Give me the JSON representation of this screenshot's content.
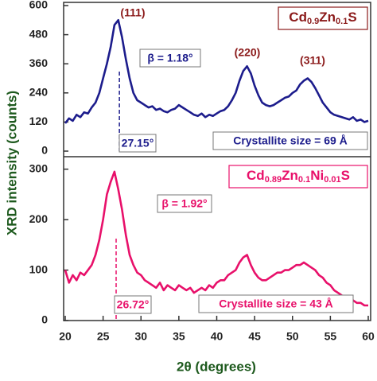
{
  "chart_data": [
    {
      "type": "line",
      "ylabel": "XRD intensity (counts)",
      "formula": [
        "Cd",
        "0.9",
        "Zn",
        "0.1",
        "S"
      ],
      "peak_labels": [
        "(111)",
        "(220)",
        "(311)"
      ],
      "beta_label": "β = 1.18°",
      "marker": {
        "value": 27.15,
        "label": "27.15°"
      },
      "size_label": "Crystallite size = 69 Å",
      "xlim": [
        20,
        60
      ],
      "ylim": [
        0,
        600
      ],
      "yticks": [
        0,
        120,
        240,
        360,
        480,
        600
      ],
      "series": [
        {
          "color": "#1c1c8c",
          "x": [
            20,
            20.5,
            21,
            21.5,
            22,
            22.5,
            23,
            23.5,
            24,
            24.5,
            25,
            25.5,
            26,
            26.5,
            27,
            27.5,
            28,
            28.5,
            29,
            29.5,
            30,
            30.5,
            31,
            31.5,
            32,
            32.5,
            33,
            33.5,
            34,
            34.5,
            35,
            35.5,
            36,
            36.5,
            37,
            37.5,
            38,
            38.5,
            39,
            39.5,
            40,
            40.5,
            41,
            41.5,
            42,
            42.5,
            43,
            43.5,
            44,
            44.5,
            45,
            45.5,
            46,
            46.5,
            47,
            47.5,
            48,
            48.5,
            49,
            49.5,
            50,
            50.5,
            51,
            51.5,
            52,
            52.5,
            53,
            53.5,
            54,
            54.5,
            55,
            55.5,
            56,
            56.5,
            57,
            57.5,
            58,
            58.5,
            59,
            59.5,
            60
          ],
          "values": [
            115,
            135,
            125,
            150,
            140,
            160,
            155,
            180,
            200,
            240,
            300,
            360,
            430,
            520,
            540,
            470,
            380,
            300,
            240,
            210,
            200,
            190,
            180,
            185,
            170,
            175,
            165,
            160,
            170,
            175,
            190,
            180,
            170,
            160,
            150,
            145,
            155,
            140,
            150,
            145,
            155,
            165,
            170,
            185,
            210,
            240,
            290,
            330,
            350,
            320,
            270,
            230,
            200,
            190,
            185,
            190,
            200,
            210,
            220,
            225,
            240,
            250,
            275,
            290,
            300,
            285,
            260,
            230,
            200,
            180,
            160,
            150,
            145,
            140,
            135,
            130,
            140,
            125,
            130,
            120,
            125
          ]
        }
      ]
    },
    {
      "type": "line",
      "xlabel": "2θ (degrees)",
      "formula": [
        "Cd",
        "0.89",
        "Zn",
        "0.1",
        "Ni",
        "0.01",
        "S"
      ],
      "beta_label": "β = 1.92°",
      "marker": {
        "value": 26.72,
        "label": "26.72°"
      },
      "size_label": "Crystallite size = 43 Å",
      "xlim": [
        20,
        60
      ],
      "xticks": [
        20,
        25,
        30,
        35,
        40,
        45,
        50,
        55,
        60
      ],
      "ylim": [
        0,
        320
      ],
      "yticks": [
        0,
        100,
        200,
        300
      ],
      "series": [
        {
          "color": "#e8106a",
          "x": [
            20,
            20.5,
            21,
            21.5,
            22,
            22.5,
            23,
            23.5,
            24,
            24.5,
            25,
            25.5,
            26,
            26.5,
            27,
            27.5,
            28,
            28.5,
            29,
            29.5,
            30,
            30.5,
            31,
            31.5,
            32,
            32.5,
            33,
            33.5,
            34,
            34.5,
            35,
            35.5,
            36,
            36.5,
            37,
            37.5,
            38,
            38.5,
            39,
            39.5,
            40,
            40.5,
            41,
            41.5,
            42,
            42.5,
            43,
            43.5,
            44,
            44.5,
            45,
            45.5,
            46,
            46.5,
            47,
            47.5,
            48,
            48.5,
            49,
            49.5,
            50,
            50.5,
            51,
            51.5,
            52,
            52.5,
            53,
            53.5,
            54,
            54.5,
            55,
            55.5,
            56,
            56.5,
            57,
            57.5,
            58,
            58.5,
            59,
            59.5,
            60
          ],
          "values": [
            100,
            75,
            90,
            80,
            95,
            90,
            100,
            110,
            130,
            160,
            200,
            250,
            275,
            295,
            260,
            220,
            170,
            130,
            110,
            95,
            90,
            80,
            75,
            70,
            65,
            75,
            60,
            70,
            65,
            60,
            70,
            65,
            60,
            65,
            55,
            60,
            65,
            60,
            70,
            65,
            75,
            80,
            80,
            90,
            95,
            100,
            115,
            125,
            130,
            110,
            95,
            85,
            80,
            80,
            85,
            90,
            95,
            95,
            100,
            100,
            105,
            110,
            110,
            115,
            110,
            105,
            100,
            90,
            85,
            75,
            70,
            60,
            55,
            50,
            45,
            40,
            40,
            35,
            35,
            30,
            30
          ]
        }
      ]
    }
  ]
}
